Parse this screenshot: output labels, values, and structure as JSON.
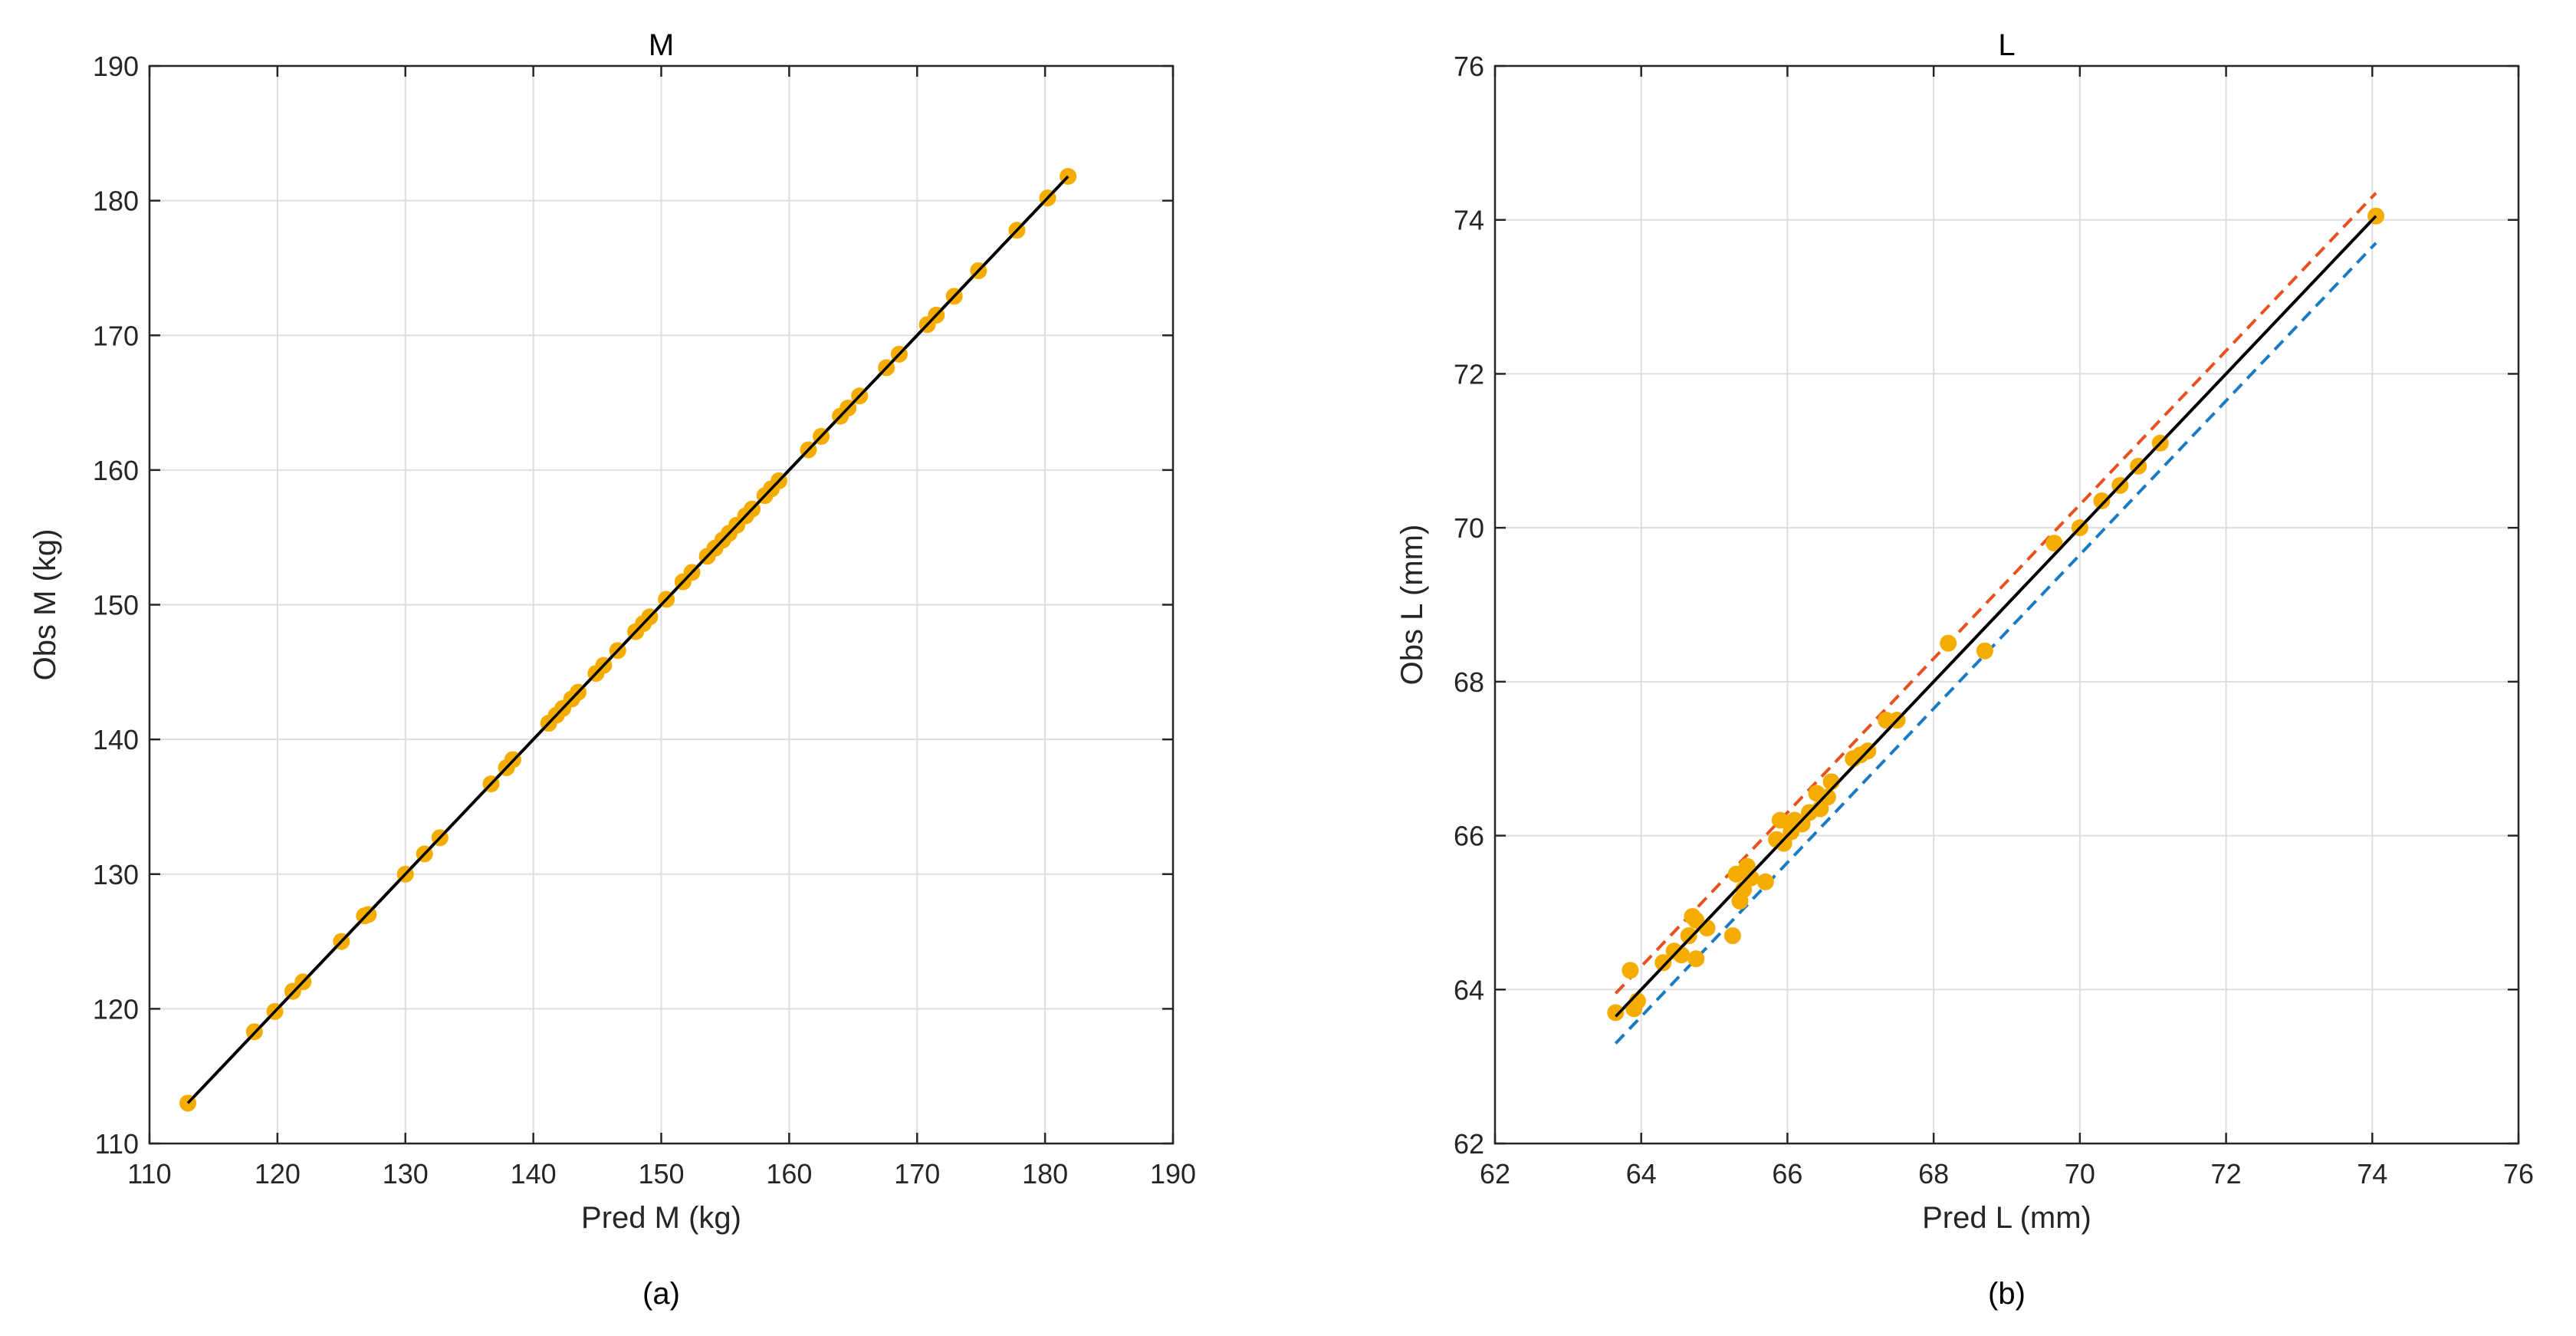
{
  "chart_data": [
    {
      "type": "scatter",
      "title": "M",
      "caption": "(a)",
      "xlabel": "Pred M (kg)",
      "ylabel": "Obs M (kg)",
      "xlim": [
        110,
        190
      ],
      "ylim": [
        110,
        190
      ],
      "xticks": [
        110,
        120,
        130,
        140,
        150,
        160,
        170,
        180,
        190
      ],
      "yticks": [
        110,
        120,
        130,
        140,
        150,
        160,
        170,
        180,
        190
      ],
      "grid": true,
      "colors": {
        "points": "#f5ac00",
        "fit": "#000000"
      },
      "series": [
        {
          "kind": "points",
          "x": [
            113.0,
            118.2,
            119.8,
            121.2,
            122.0,
            125.0,
            126.8,
            127.1,
            130.0,
            131.5,
            132.7,
            136.7,
            137.9,
            138.4,
            141.2,
            141.8,
            142.3,
            143.0,
            143.5,
            144.9,
            145.5,
            146.6,
            148.0,
            148.6,
            149.1,
            150.4,
            151.7,
            152.4,
            153.6,
            154.2,
            154.8,
            155.3,
            155.9,
            156.6,
            157.1,
            158.1,
            158.6,
            159.2,
            161.5,
            162.5,
            164.0,
            164.6,
            165.5,
            167.6,
            168.6,
            170.8,
            171.5,
            172.9,
            174.8,
            177.8,
            180.2,
            181.8
          ],
          "y": [
            113.0,
            118.3,
            119.8,
            121.3,
            122.0,
            125.0,
            126.9,
            127.0,
            130.0,
            131.5,
            132.7,
            136.7,
            137.9,
            138.5,
            141.2,
            141.8,
            142.3,
            143.0,
            143.5,
            144.9,
            145.5,
            146.6,
            148.0,
            148.6,
            149.1,
            150.4,
            151.7,
            152.4,
            153.6,
            154.2,
            154.8,
            155.3,
            155.9,
            156.6,
            157.1,
            158.1,
            158.6,
            159.2,
            161.5,
            162.5,
            164.0,
            164.6,
            165.5,
            167.6,
            168.6,
            170.8,
            171.5,
            172.9,
            174.8,
            177.8,
            180.2,
            181.8
          ]
        },
        {
          "kind": "line",
          "style": "solid",
          "color": "#000000",
          "x": [
            113.0,
            181.8
          ],
          "y": [
            113.0,
            181.8
          ]
        }
      ]
    },
    {
      "type": "scatter",
      "title": "L",
      "caption": "(b)",
      "xlabel": "Pred L (mm)",
      "ylabel": "Obs L (mm)",
      "xlim": [
        62,
        76
      ],
      "ylim": [
        62,
        76
      ],
      "xticks": [
        62,
        64,
        66,
        68,
        70,
        72,
        74,
        76
      ],
      "yticks": [
        62,
        64,
        66,
        68,
        70,
        72,
        74,
        76
      ],
      "grid": true,
      "colors": {
        "points": "#f5ac00",
        "fit": "#000000",
        "upper": "#e8501e",
        "lower": "#1a7ac4"
      },
      "series": [
        {
          "kind": "points",
          "x": [
            63.65,
            63.85,
            63.9,
            63.95,
            64.3,
            64.45,
            64.55,
            64.65,
            64.7,
            64.75,
            64.75,
            64.9,
            65.25,
            65.3,
            65.35,
            65.4,
            65.45,
            65.5,
            65.7,
            65.85,
            65.9,
            65.95,
            66.05,
            66.1,
            66.2,
            66.3,
            66.4,
            66.45,
            66.55,
            66.6,
            66.9,
            67.0,
            67.1,
            67.35,
            67.5,
            68.2,
            68.7,
            69.65,
            70.0,
            70.3,
            70.55,
            70.8,
            71.1,
            74.05
          ],
          "y": [
            63.7,
            64.25,
            63.75,
            63.85,
            64.35,
            64.5,
            64.45,
            64.7,
            64.95,
            64.4,
            64.9,
            64.8,
            64.7,
            65.5,
            65.15,
            65.3,
            65.6,
            65.45,
            65.4,
            65.95,
            66.2,
            65.9,
            66.05,
            66.2,
            66.15,
            66.3,
            66.55,
            66.35,
            66.5,
            66.7,
            67.0,
            67.05,
            67.1,
            67.5,
            67.5,
            68.5,
            68.4,
            69.8,
            70.0,
            70.35,
            70.55,
            70.8,
            71.1,
            74.05
          ]
        },
        {
          "kind": "line",
          "style": "solid",
          "color": "#000000",
          "x": [
            63.65,
            74.05
          ],
          "y": [
            63.65,
            74.05
          ]
        },
        {
          "kind": "line",
          "style": "dashed",
          "color": "#e8501e",
          "x": [
            63.65,
            74.05
          ],
          "y": [
            63.95,
            74.35
          ]
        },
        {
          "kind": "line",
          "style": "dashed",
          "color": "#1a7ac4",
          "x": [
            63.65,
            74.05
          ],
          "y": [
            63.3,
            73.7
          ]
        }
      ]
    }
  ]
}
